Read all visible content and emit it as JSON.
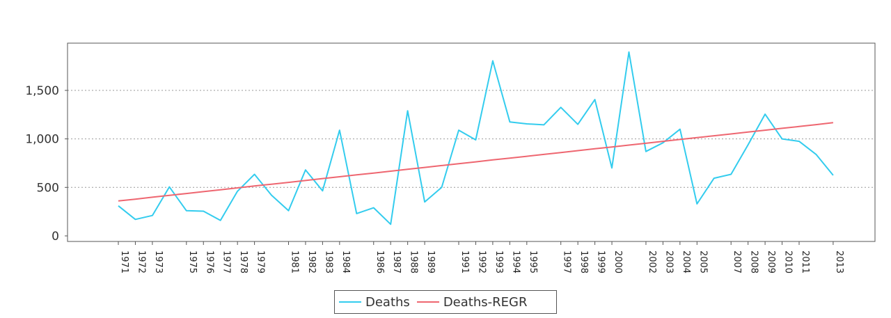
{
  "chart_data": {
    "type": "line",
    "title": "",
    "xlabel": "",
    "ylabel": "",
    "ylim": [
      0,
      1950
    ],
    "yticks": [
      0,
      500,
      1000,
      1500
    ],
    "ytick_labels": [
      "0",
      "500",
      "1,000",
      "1,500"
    ],
    "grid": true,
    "legend_position": "bottom",
    "x": [
      1971,
      1972,
      1973,
      1974,
      1975,
      1976,
      1977,
      1978,
      1979,
      1980,
      1981,
      1982,
      1983,
      1984,
      1985,
      1986,
      1987,
      1988,
      1989,
      1990,
      1991,
      1992,
      1993,
      1994,
      1995,
      1996,
      1997,
      1998,
      1999,
      2000,
      2001,
      2002,
      2003,
      2004,
      2005,
      2006,
      2007,
      2008,
      2009,
      2010,
      2011,
      2012,
      2013
    ],
    "x_tick_labels": [
      "1971",
      "1972",
      "1973",
      "1975",
      "1976",
      "1977",
      "1978",
      "1979",
      "1981",
      "1982",
      "1983",
      "1984",
      "1986",
      "1987",
      "1988",
      "1989",
      "1991",
      "1992",
      "1993",
      "1994",
      "1995",
      "1997",
      "1998",
      "1999",
      "2000",
      "2002",
      "2003",
      "2004",
      "2005",
      "2007",
      "2008",
      "2009",
      "2010",
      "2011",
      "2013"
    ],
    "series": [
      {
        "name": "Deaths",
        "color": "#33ccee",
        "values": [
          310,
          170,
          210,
          505,
          260,
          255,
          160,
          460,
          635,
          420,
          260,
          680,
          465,
          1090,
          230,
          290,
          120,
          1290,
          350,
          500,
          1090,
          990,
          1805,
          1175,
          1155,
          1145,
          1325,
          1150,
          1405,
          700,
          1895,
          870,
          960,
          1100,
          330,
          595,
          635,
          940,
          1255,
          1000,
          975,
          840,
          625
        ]
      },
      {
        "name": "Deaths-REGR",
        "color": "#ee6670",
        "values": [
          360,
          379,
          399,
          418,
          437,
          456,
          475,
          495,
          514,
          533,
          552,
          571,
          591,
          610,
          629,
          648,
          667,
          687,
          706,
          725,
          744,
          763,
          783,
          802,
          821,
          840,
          859,
          879,
          898,
          917,
          936,
          955,
          975,
          994,
          1013,
          1032,
          1051,
          1071,
          1090,
          1109,
          1128,
          1147,
          1167
        ]
      }
    ]
  }
}
